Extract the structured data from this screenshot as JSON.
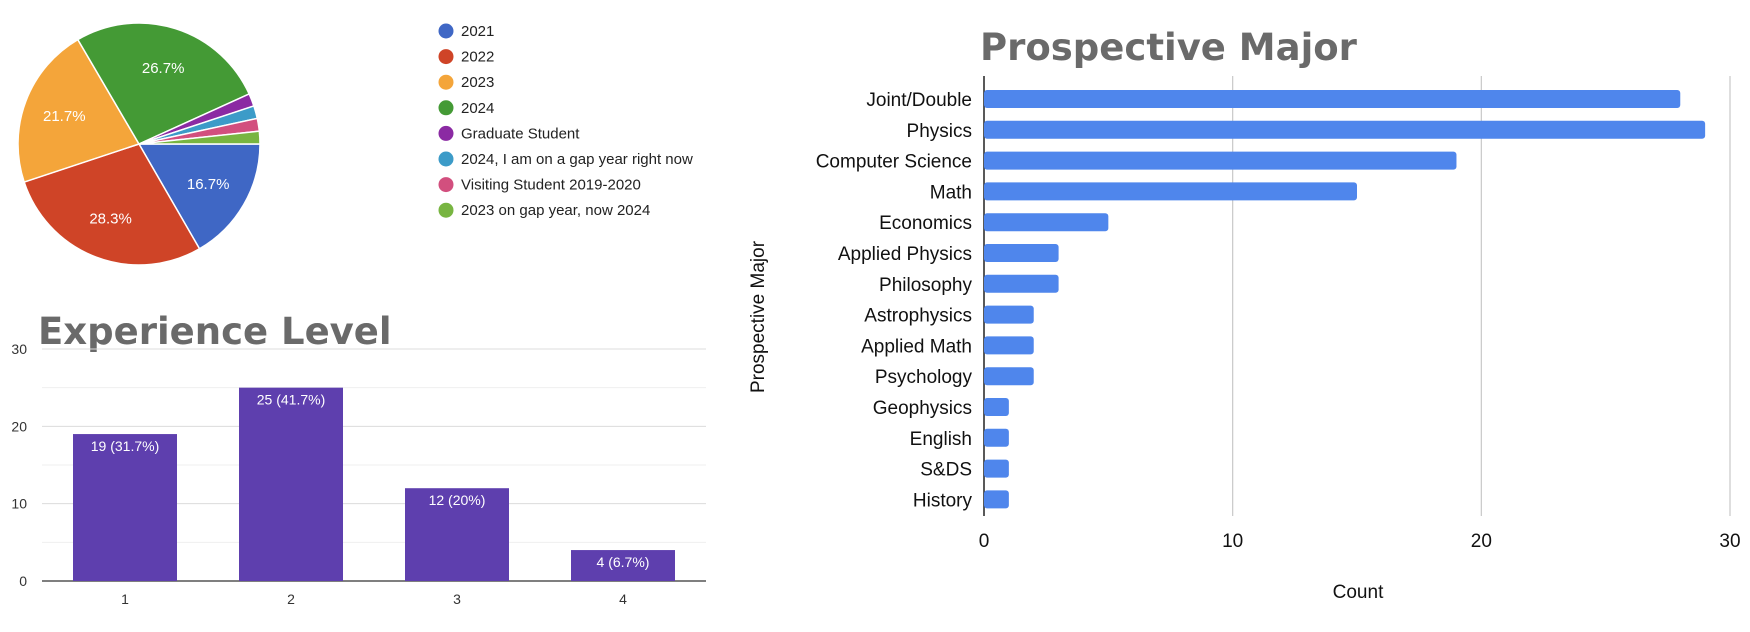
{
  "chart_data": [
    {
      "type": "pie",
      "title": "",
      "slices": [
        {
          "label": "2021",
          "value": 16.7,
          "display": "16.7%",
          "color": "#3f67c5"
        },
        {
          "label": "2022",
          "value": 28.3,
          "display": "28.3%",
          "color": "#cf4427"
        },
        {
          "label": "2023",
          "value": 21.7,
          "display": "21.7%",
          "color": "#f4a53a"
        },
        {
          "label": "2024",
          "value": 26.7,
          "display": "26.7%",
          "color": "#449a35"
        },
        {
          "label": "Graduate Student",
          "value": 1.7,
          "display": "",
          "color": "#8b2aa3"
        },
        {
          "label": "2024, I am on a gap year right now",
          "value": 1.7,
          "display": "",
          "color": "#3c9bc8"
        },
        {
          "label": "Visiting Student 2019-2020",
          "value": 1.7,
          "display": "",
          "color": "#d24f7e"
        },
        {
          "label": "2023 on gap year, now 2024",
          "value": 1.7,
          "display": "",
          "color": "#78b541"
        }
      ],
      "legend_position": "right"
    },
    {
      "type": "bar",
      "title": "Experience Level",
      "categories": [
        "1",
        "2",
        "3",
        "4"
      ],
      "values": [
        19,
        25,
        12,
        4
      ],
      "data_labels": [
        "19 (31.7%)",
        "25 (41.7%)",
        "12 (20%)",
        "4 (6.7%)"
      ],
      "yticks": [
        "0",
        "10",
        "20",
        "30"
      ],
      "ylim": [
        0,
        30
      ],
      "color": "#5e3fae",
      "grid": true
    },
    {
      "type": "bar",
      "orientation": "horizontal",
      "title": "Prospective Major",
      "categories": [
        "Joint/Double",
        "Physics",
        "Computer Science",
        "Math",
        "Economics",
        "Applied Physics",
        "Philosophy",
        "Astrophysics",
        "Applied Math",
        "Psychology",
        "Geophysics",
        "English",
        "S&DS",
        "History"
      ],
      "values": [
        28,
        29,
        19,
        15,
        5,
        3,
        3,
        2,
        2,
        2,
        1,
        1,
        1,
        1
      ],
      "xticks": [
        "0",
        "10",
        "20",
        "30"
      ],
      "xlim": [
        0,
        30
      ],
      "xlabel": "Count",
      "ylabel": "Prospective Major",
      "color": "#4f86ec",
      "grid": true
    }
  ]
}
